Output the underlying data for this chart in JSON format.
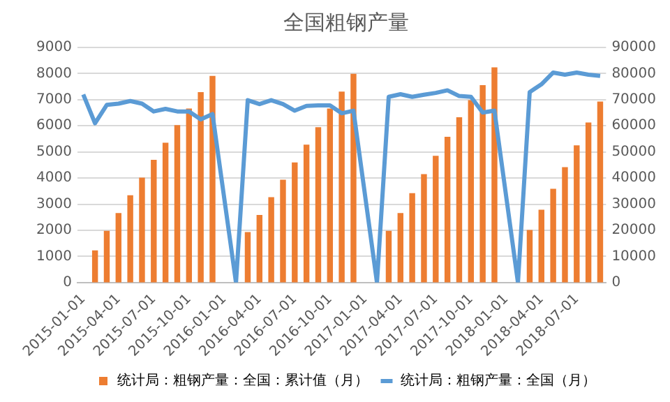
{
  "chart_data": {
    "type": "bar",
    "title": "全国粗钢产量",
    "categories": [
      "2015-01-01",
      null,
      null,
      "2015-04-01",
      null,
      null,
      "2015-07-01",
      null,
      null,
      "2015-10-01",
      null,
      null,
      "2016-01-01",
      null,
      null,
      "2016-04-01",
      null,
      null,
      "2016-07-01",
      null,
      null,
      "2016-10-01",
      null,
      null,
      "2017-01-01",
      null,
      null,
      "2017-04-01",
      null,
      null,
      "2017-07-01",
      null,
      null,
      "2017-10-01",
      null,
      null,
      "2018-01-01",
      null,
      null,
      "2018-04-01",
      null,
      null,
      "2018-07-01",
      null,
      null
    ],
    "series": [
      {
        "name": "统计局：粗钢产量：全国：累计值（月）",
        "axis": "y2",
        "color": "#ed7d31",
        "values": [
          null,
          12300,
          19800,
          26600,
          33400,
          40200,
          47000,
          53500,
          60300,
          66600,
          72900,
          79100,
          null,
          null,
          19300,
          25900,
          32700,
          39400,
          46000,
          52800,
          59500,
          66600,
          73100,
          79900,
          null,
          null,
          19800,
          26600,
          34200,
          41500,
          48500,
          55800,
          63300,
          69800,
          75600,
          82400,
          null,
          null,
          20100,
          27900,
          35900,
          44200,
          52500,
          61300,
          69300
        ]
      },
      {
        "name": "统计局：粗钢产量：全国（月）",
        "type": "line",
        "axis": "y",
        "color": "#5b9bd5",
        "values": [
          7200,
          6100,
          6800,
          6850,
          6950,
          6850,
          6550,
          6650,
          6550,
          6550,
          6250,
          6450,
          null,
          0,
          6980,
          6830,
          6980,
          6830,
          6580,
          6760,
          6780,
          6780,
          6480,
          6580,
          null,
          0,
          7110,
          7210,
          7110,
          7190,
          7260,
          7360,
          7140,
          7110,
          6510,
          6580,
          null,
          0,
          7290,
          7590,
          8040,
          7960,
          8040,
          7960,
          7910
        ]
      }
    ],
    "ylim": [
      0,
      9000
    ],
    "yticks": [
      0,
      1000,
      2000,
      3000,
      4000,
      5000,
      6000,
      7000,
      8000,
      9000
    ],
    "y2lim": [
      0,
      90000
    ],
    "y2ticks": [
      0,
      10000,
      20000,
      30000,
      40000,
      50000,
      60000,
      70000,
      80000,
      90000
    ],
    "grid": "y",
    "legend": "bottom",
    "marker": "none",
    "line_style": "solid"
  }
}
